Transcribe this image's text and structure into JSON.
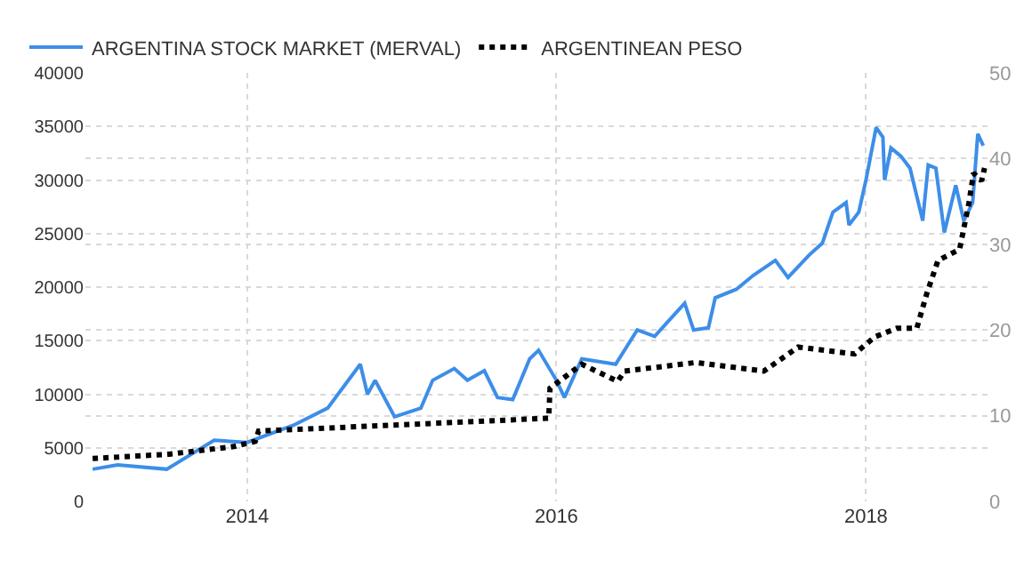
{
  "chart_data": {
    "type": "line",
    "xlim": [
      "2012-12-15",
      "2018-10-15"
    ],
    "xticks": [
      "2014",
      "2016",
      "2018"
    ],
    "ylim": [
      0,
      40000
    ],
    "yticks": [
      0,
      5000,
      10000,
      15000,
      20000,
      25000,
      30000,
      35000,
      40000
    ],
    "y2lim": [
      0,
      50
    ],
    "y2ticks": [
      0,
      10,
      20,
      30,
      40,
      50
    ],
    "grid": true,
    "legend": "top left",
    "marker": "none",
    "series": [
      {
        "name": "ARGENTINA STOCK MARKET (MERVAL)",
        "color": "#3d8ee8",
        "line_style": "solid",
        "x": [
          "2013-01-01",
          "2013-03-01",
          "2013-06-25",
          "2013-10-15",
          "2014-01-01",
          "2014-04-20",
          "2014-07-10",
          "2014-09-25",
          "2014-10-12",
          "2014-10-30",
          "2014-12-15",
          "2015-02-15",
          "2015-03-15",
          "2015-05-05",
          "2015-06-05",
          "2015-07-15",
          "2015-08-15",
          "2015-09-20",
          "2015-10-30",
          "2015-11-20",
          "2016-01-01",
          "2016-01-20",
          "2016-03-01",
          "2016-05-20",
          "2016-07-10",
          "2016-08-20",
          "2016-10-30",
          "2016-11-20",
          "2016-12-25",
          "2017-01-10",
          "2017-03-01",
          "2017-04-10",
          "2017-06-01",
          "2017-07-01",
          "2017-08-20",
          "2017-09-20",
          "2017-10-15",
          "2017-11-15",
          "2017-11-22",
          "2017-12-15",
          "2018-01-01",
          "2018-01-25",
          "2018-02-10",
          "2018-02-14",
          "2018-03-01",
          "2018-03-25",
          "2018-04-15",
          "2018-05-15",
          "2018-05-28",
          "2018-06-15",
          "2018-07-05",
          "2018-08-01",
          "2018-08-20",
          "2018-09-10",
          "2018-09-22",
          "2018-10-05"
        ],
        "values": [
          3000,
          3400,
          3000,
          5700,
          5500,
          7100,
          8700,
          12800,
          10000,
          11300,
          7900,
          8700,
          11300,
          12400,
          11300,
          12200,
          9700,
          9500,
          13300,
          14100,
          11300,
          9700,
          13300,
          12800,
          16000,
          15400,
          18500,
          16000,
          16200,
          19000,
          19800,
          21100,
          22500,
          20900,
          23000,
          24100,
          27000,
          27900,
          25800,
          27000,
          30000,
          34900,
          34000,
          30000,
          33000,
          32200,
          31100,
          26200,
          31400,
          31100,
          25100,
          29500,
          26200,
          27900,
          34300,
          33200
        ]
      },
      {
        "name": "ARGENTINEAN PESO",
        "color": "#000000",
        "line_style": "dotted",
        "axis": "y2",
        "x": [
          "2013-01-01",
          "2013-07-01",
          "2013-12-01",
          "2014-01-20",
          "2014-01-28",
          "2015-12-14",
          "2015-12-17",
          "2016-03-01",
          "2016-05-25",
          "2016-06-10",
          "2016-11-25",
          "2017-05-05",
          "2017-07-25",
          "2017-12-05",
          "2018-01-22",
          "2018-03-15",
          "2018-05-01",
          "2018-05-25",
          "2018-06-20",
          "2018-08-10",
          "2018-09-01",
          "2018-09-12",
          "2018-10-01",
          "2018-10-08"
        ],
        "values": [
          5.0,
          5.5,
          6.4,
          7.0,
          8.2,
          9.7,
          13.2,
          16.0,
          14.0,
          15.2,
          16.2,
          15.2,
          18.0,
          17.2,
          19.2,
          20.2,
          20.2,
          24.3,
          28.1,
          29.4,
          34.8,
          38.3,
          37.4,
          38.9
        ]
      }
    ]
  }
}
